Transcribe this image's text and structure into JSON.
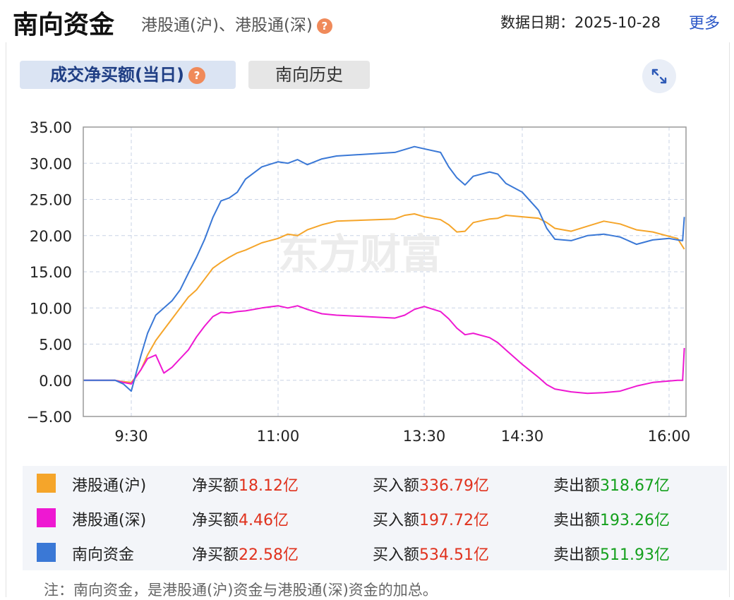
{
  "header": {
    "title": "南向资金",
    "subtitle": "港股通(沪)、港股通(深)",
    "help_icon": "?",
    "date_label": "数据日期：",
    "date_value": "2025-10-28",
    "more_label": "更多"
  },
  "tabs": {
    "active_label": "成交净买额(当日)",
    "inactive_label": "南向历史"
  },
  "watermark": "东方财富",
  "colors": {
    "hgt_sh": "#f5a52a",
    "hgt_sz": "#ee18d2",
    "southbound": "#3a78d6",
    "positive": "#e0321e",
    "negative": "#14a01d"
  },
  "chart_data": {
    "type": "line",
    "yticks": [
      "35.00",
      "30.00",
      "25.00",
      "20.00",
      "15.00",
      "10.00",
      "5.00",
      "0.00",
      "−5.00"
    ],
    "xticks": [
      "9:30",
      "11:00",
      "13:30",
      "14:30",
      "16:00"
    ],
    "ylim": [
      -5,
      35
    ],
    "grid": true,
    "series": [
      {
        "name": "港股通(沪)",
        "color": "#f5a52a",
        "points": [
          [
            "9:00",
            0
          ],
          [
            "9:20",
            0
          ],
          [
            "9:25",
            -0.2
          ],
          [
            "9:30",
            -0.3
          ],
          [
            "9:33",
            0.5
          ],
          [
            "9:36",
            1.5
          ],
          [
            "9:40",
            3.5
          ],
          [
            "9:45",
            5.5
          ],
          [
            "9:50",
            7.0
          ],
          [
            "9:55",
            8.5
          ],
          [
            "10:00",
            10.0
          ],
          [
            "10:05",
            11.5
          ],
          [
            "10:10",
            12.5
          ],
          [
            "10:15",
            14.0
          ],
          [
            "10:20",
            15.5
          ],
          [
            "10:25",
            16.3
          ],
          [
            "10:30",
            17.0
          ],
          [
            "10:35",
            17.6
          ],
          [
            "10:40",
            18.0
          ],
          [
            "10:50",
            19.0
          ],
          [
            "11:00",
            19.6
          ],
          [
            "11:10",
            20.2
          ],
          [
            "11:20",
            20.0
          ],
          [
            "11:30",
            20.8
          ],
          [
            "11:45",
            21.5
          ],
          [
            "12:00",
            22.0
          ],
          [
            "13:00",
            22.3
          ],
          [
            "13:10",
            22.8
          ],
          [
            "13:20",
            23.0
          ],
          [
            "13:30",
            22.6
          ],
          [
            "13:40",
            22.2
          ],
          [
            "13:45",
            21.5
          ],
          [
            "13:50",
            20.5
          ],
          [
            "13:55",
            20.6
          ],
          [
            "14:00",
            21.8
          ],
          [
            "14:10",
            22.3
          ],
          [
            "14:15",
            22.4
          ],
          [
            "14:20",
            22.8
          ],
          [
            "14:30",
            22.6
          ],
          [
            "14:40",
            22.4
          ],
          [
            "14:45",
            21.8
          ],
          [
            "14:50",
            21.0
          ],
          [
            "15:00",
            20.6
          ],
          [
            "15:10",
            21.3
          ],
          [
            "15:20",
            22.0
          ],
          [
            "15:30",
            21.6
          ],
          [
            "15:40",
            20.8
          ],
          [
            "15:50",
            20.5
          ],
          [
            "16:00",
            19.9
          ],
          [
            "16:05",
            19.6
          ],
          [
            "16:09",
            18.12
          ]
        ]
      },
      {
        "name": "港股通(深)",
        "color": "#ee18d2",
        "points": [
          [
            "9:00",
            0
          ],
          [
            "9:20",
            0
          ],
          [
            "9:25",
            -0.3
          ],
          [
            "9:30",
            -0.5
          ],
          [
            "9:33",
            0.5
          ],
          [
            "9:36",
            1.5
          ],
          [
            "9:40",
            3.0
          ],
          [
            "9:45",
            3.5
          ],
          [
            "9:50",
            1.0
          ],
          [
            "9:55",
            1.8
          ],
          [
            "10:00",
            3.0
          ],
          [
            "10:05",
            4.2
          ],
          [
            "10:10",
            6.0
          ],
          [
            "10:15",
            7.5
          ],
          [
            "10:20",
            8.8
          ],
          [
            "10:25",
            9.4
          ],
          [
            "10:30",
            9.3
          ],
          [
            "10:35",
            9.5
          ],
          [
            "10:40",
            9.6
          ],
          [
            "10:50",
            10.0
          ],
          [
            "11:00",
            10.3
          ],
          [
            "11:10",
            10.0
          ],
          [
            "11:20",
            10.3
          ],
          [
            "11:30",
            9.8
          ],
          [
            "11:45",
            9.2
          ],
          [
            "12:00",
            9.0
          ],
          [
            "13:00",
            8.6
          ],
          [
            "13:10",
            9.0
          ],
          [
            "13:20",
            9.8
          ],
          [
            "13:30",
            10.2
          ],
          [
            "13:40",
            9.5
          ],
          [
            "13:45",
            8.5
          ],
          [
            "13:50",
            7.2
          ],
          [
            "13:55",
            6.3
          ],
          [
            "14:00",
            6.5
          ],
          [
            "14:10",
            5.9
          ],
          [
            "14:15",
            5.2
          ],
          [
            "14:20",
            4.2
          ],
          [
            "14:30",
            2.2
          ],
          [
            "14:40",
            0.4
          ],
          [
            "14:45",
            -0.6
          ],
          [
            "14:50",
            -1.2
          ],
          [
            "15:00",
            -1.6
          ],
          [
            "15:10",
            -1.8
          ],
          [
            "15:20",
            -1.7
          ],
          [
            "15:30",
            -1.5
          ],
          [
            "15:40",
            -0.8
          ],
          [
            "15:50",
            -0.3
          ],
          [
            "16:00",
            -0.1
          ],
          [
            "16:05",
            0.0
          ],
          [
            "16:08",
            0.0
          ],
          [
            "16:09",
            4.46
          ]
        ]
      },
      {
        "name": "南向资金",
        "color": "#3a78d6",
        "points": [
          [
            "9:00",
            0
          ],
          [
            "9:20",
            0
          ],
          [
            "9:25",
            -0.5
          ],
          [
            "9:30",
            -1.5
          ],
          [
            "9:33",
            1.0
          ],
          [
            "9:36",
            3.5
          ],
          [
            "9:40",
            6.5
          ],
          [
            "9:45",
            9.0
          ],
          [
            "9:50",
            10.0
          ],
          [
            "9:55",
            11.0
          ],
          [
            "10:00",
            12.5
          ],
          [
            "10:05",
            14.8
          ],
          [
            "10:10",
            17.0
          ],
          [
            "10:15",
            19.5
          ],
          [
            "10:20",
            22.5
          ],
          [
            "10:25",
            24.8
          ],
          [
            "10:30",
            25.2
          ],
          [
            "10:35",
            26.0
          ],
          [
            "10:40",
            27.8
          ],
          [
            "10:50",
            29.5
          ],
          [
            "11:00",
            30.2
          ],
          [
            "11:10",
            30.0
          ],
          [
            "11:20",
            30.5
          ],
          [
            "11:30",
            29.8
          ],
          [
            "11:45",
            30.6
          ],
          [
            "12:00",
            31.0
          ],
          [
            "13:00",
            31.5
          ],
          [
            "13:10",
            31.9
          ],
          [
            "13:20",
            32.3
          ],
          [
            "13:30",
            32.0
          ],
          [
            "13:40",
            31.5
          ],
          [
            "13:45",
            29.5
          ],
          [
            "13:50",
            28.0
          ],
          [
            "13:55",
            27.0
          ],
          [
            "14:00",
            28.2
          ],
          [
            "14:10",
            28.8
          ],
          [
            "14:15",
            28.5
          ],
          [
            "14:20",
            27.2
          ],
          [
            "14:30",
            26.0
          ],
          [
            "14:40",
            23.5
          ],
          [
            "14:45",
            21.0
          ],
          [
            "14:50",
            19.5
          ],
          [
            "15:00",
            19.3
          ],
          [
            "15:10",
            20.0
          ],
          [
            "15:20",
            20.2
          ],
          [
            "15:30",
            19.8
          ],
          [
            "15:40",
            18.8
          ],
          [
            "15:50",
            19.4
          ],
          [
            "16:00",
            19.6
          ],
          [
            "16:05",
            19.4
          ],
          [
            "16:08",
            19.3
          ],
          [
            "16:09",
            22.58
          ]
        ]
      }
    ]
  },
  "legend": [
    {
      "name": "港股通(沪)",
      "color": "#f5a52a",
      "net_label": "净买额",
      "net_value": "18.12亿",
      "buy_label": "买入额",
      "buy_value": "336.79亿",
      "sell_label": "卖出额",
      "sell_value": "318.67亿"
    },
    {
      "name": "港股通(深)",
      "color": "#ee18d2",
      "net_label": "净买额",
      "net_value": "4.46亿",
      "buy_label": "买入额",
      "buy_value": "197.72亿",
      "sell_label": "卖出额",
      "sell_value": "193.26亿"
    },
    {
      "name": "南向资金",
      "color": "#3a78d6",
      "net_label": "净买额",
      "net_value": "22.58亿",
      "buy_label": "买入额",
      "buy_value": "534.51亿",
      "sell_label": "卖出额",
      "sell_value": "511.93亿"
    }
  ],
  "note": "注：南向资金，是港股通(沪)资金与港股通(深)资金的加总。"
}
